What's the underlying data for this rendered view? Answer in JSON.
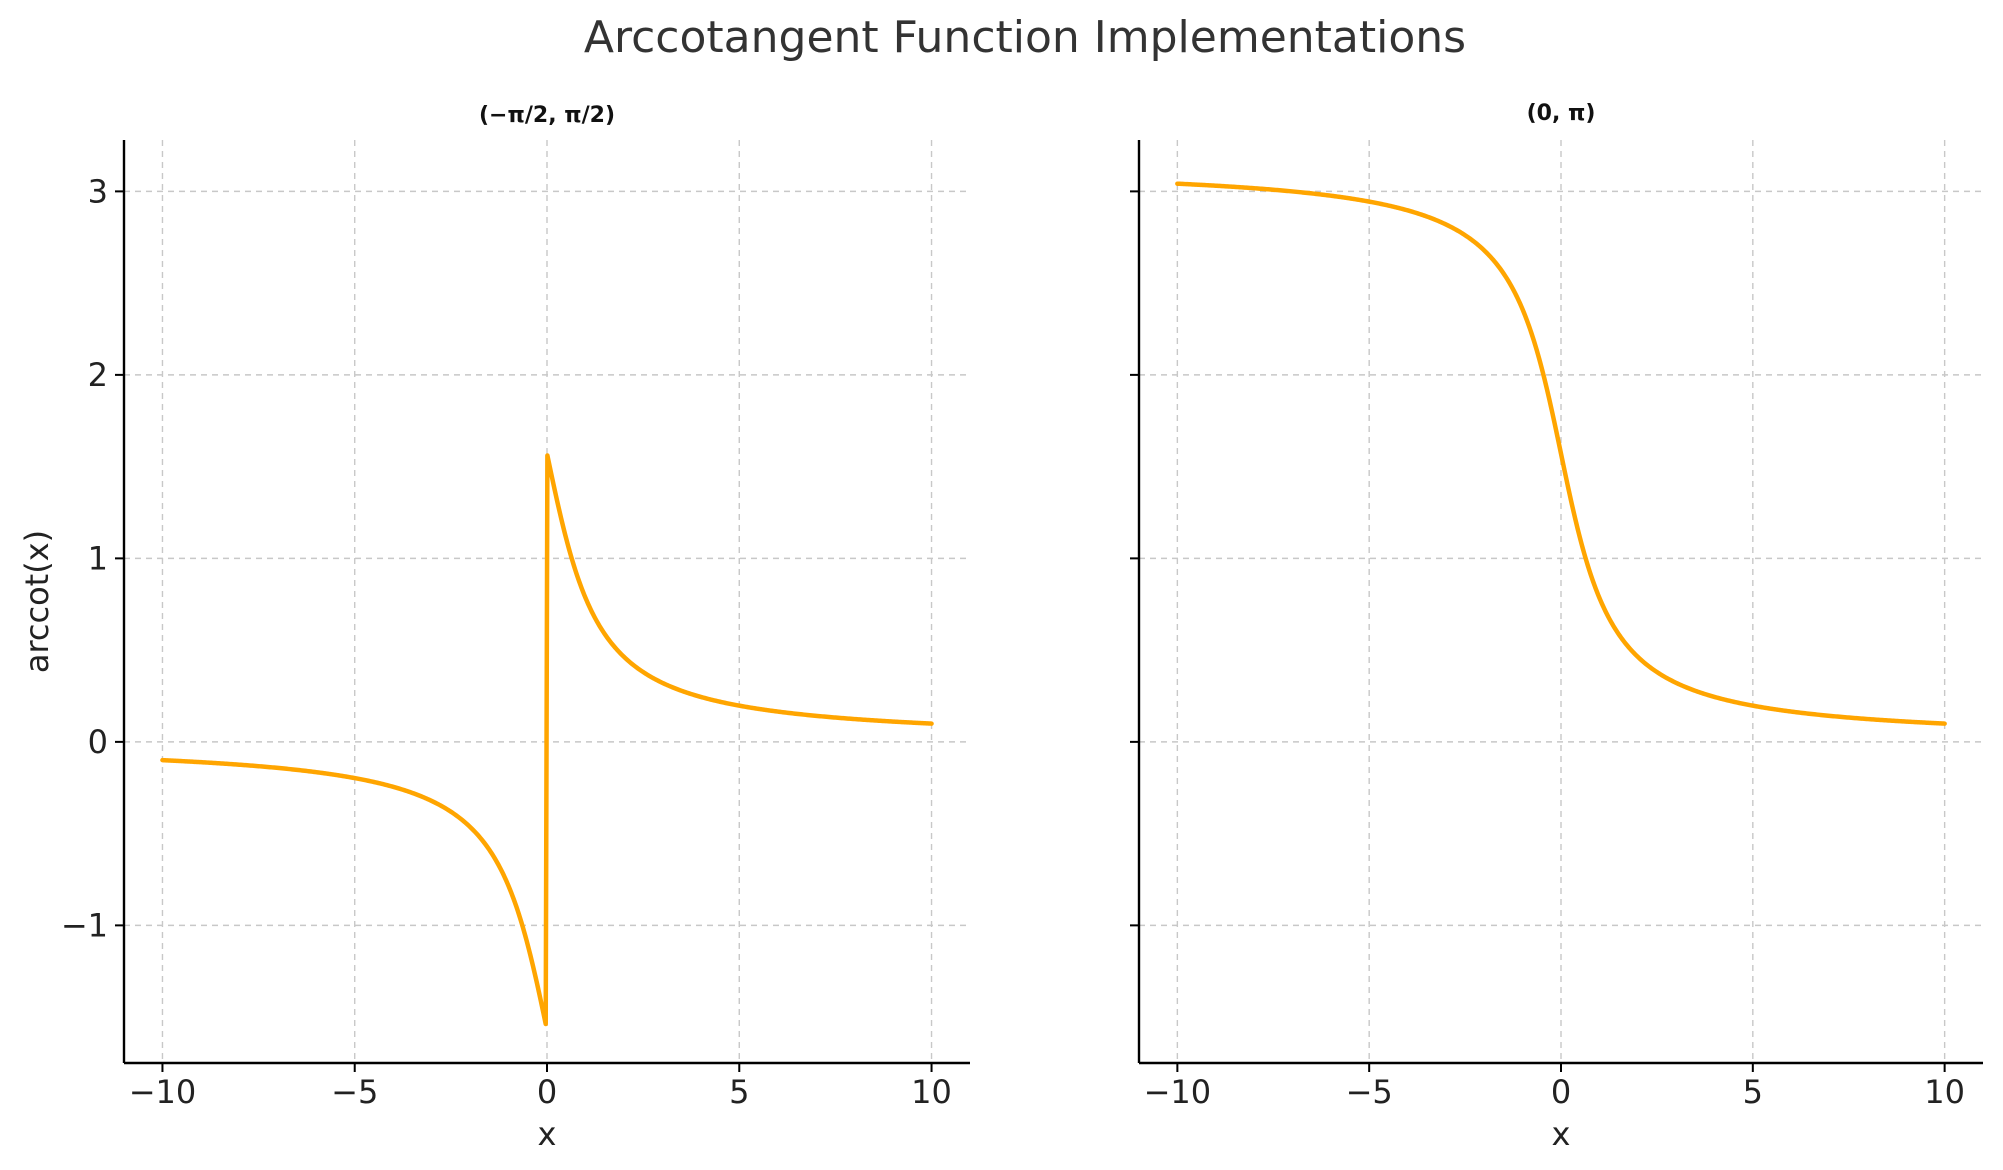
{
  "figure": {
    "title": "Arccotangent Function Implementations"
  },
  "chart_data": [
    {
      "type": "line",
      "title": "(−π/2, π/2)",
      "xlabel": "x",
      "ylabel": "arccot(x)",
      "xlim": [
        -11,
        11
      ],
      "ylim": [
        -1.75,
        3.28
      ],
      "xticks": [
        -10,
        -5,
        0,
        5,
        10
      ],
      "xtick_labels": [
        "−10",
        "−5",
        "0",
        "5",
        "10"
      ],
      "yticks": [
        -1,
        0,
        1,
        2,
        3
      ],
      "ytick_labels": [
        "−1",
        "0",
        "1",
        "2",
        "3"
      ],
      "grid": true,
      "branch": "principal",
      "series": [
        {
          "color": "#FFA500",
          "x": [
            -10,
            -8,
            -6,
            -5,
            -4,
            -3,
            -2,
            -1.5,
            -1,
            -0.5,
            -0.01,
            0.01,
            0.5,
            1,
            1.5,
            2,
            3,
            4,
            5,
            6,
            8,
            10
          ],
          "y": [
            -0.0997,
            -0.1244,
            -0.1651,
            -0.1974,
            -0.245,
            -0.3218,
            -0.4636,
            -0.588,
            -0.7854,
            -1.1071,
            -1.5608,
            1.5608,
            1.1071,
            0.7854,
            0.588,
            0.4636,
            0.3218,
            0.245,
            0.1974,
            0.1651,
            0.1244,
            0.0997
          ]
        }
      ]
    },
    {
      "type": "line",
      "title": "(0, π)",
      "xlabel": "x",
      "ylabel": "",
      "xlim": [
        -11,
        11
      ],
      "ylim": [
        -1.75,
        3.28
      ],
      "xticks": [
        -10,
        -5,
        0,
        5,
        10
      ],
      "xtick_labels": [
        "−10",
        "−5",
        "0",
        "5",
        "10"
      ],
      "yticks": [
        -1,
        0,
        1,
        2,
        3
      ],
      "ytick_labels": [],
      "grid": true,
      "branch": "zero_to_pi",
      "series": [
        {
          "color": "#FFA500",
          "x": [
            -10,
            -8,
            -6,
            -5,
            -4,
            -3,
            -2,
            -1.5,
            -1,
            -0.5,
            0,
            0.5,
            1,
            1.5,
            2,
            3,
            4,
            5,
            6,
            8,
            10
          ],
          "y": [
            3.0419,
            3.0172,
            2.9764,
            2.9442,
            2.8966,
            2.8198,
            2.6779,
            2.5536,
            2.3562,
            2.0344,
            1.5708,
            1.1071,
            0.7854,
            0.588,
            0.4636,
            0.3218,
            0.245,
            0.1974,
            0.1651,
            0.1244,
            0.0997
          ]
        }
      ]
    }
  ]
}
